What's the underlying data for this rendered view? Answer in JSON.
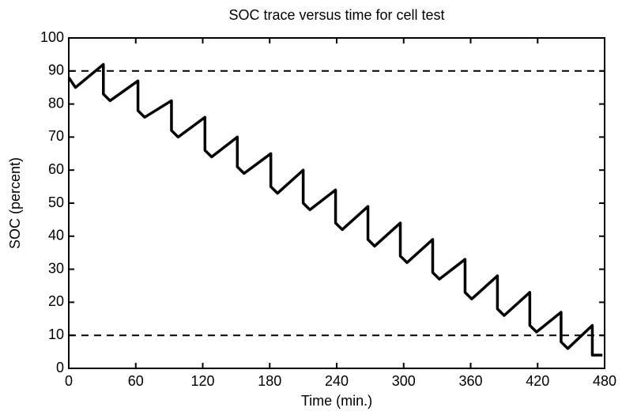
{
  "chart_data": {
    "type": "line",
    "title": "SOC trace versus time for cell test",
    "x_label": "Time (min.)",
    "y_label": "SOC (percent)",
    "x": [
      0,
      6,
      31,
      31,
      37,
      62,
      62,
      68,
      92,
      92,
      98,
      122,
      122,
      128,
      151,
      151,
      157,
      181,
      181,
      187,
      210,
      210,
      216,
      239,
      239,
      245,
      268,
      268,
      274,
      297,
      297,
      303,
      326,
      326,
      332,
      355,
      355,
      361,
      384,
      384,
      390,
      413,
      413,
      419,
      441,
      441,
      447,
      469,
      469,
      478
    ],
    "values": [
      88,
      85,
      92,
      83,
      81,
      87,
      78,
      76,
      81,
      72,
      70,
      76,
      66,
      64,
      70,
      61,
      59,
      65,
      55,
      53,
      60,
      50,
      48,
      54,
      44,
      42,
      49,
      39,
      37,
      44,
      34,
      32,
      39,
      29,
      27,
      33,
      23,
      21,
      28,
      18,
      16,
      23,
      13,
      11,
      17,
      8,
      6,
      13,
      4,
      4
    ],
    "color": "#000000",
    "reference_lines": [
      90,
      10
    ],
    "xlim": [
      0,
      480
    ],
    "xticks": [
      0,
      60,
      120,
      180,
      240,
      300,
      360,
      420,
      480
    ],
    "ylim": [
      0,
      100
    ],
    "yticks": [
      0,
      10,
      20,
      30,
      40,
      50,
      60,
      70,
      80,
      90,
      100
    ],
    "grid": false
  }
}
